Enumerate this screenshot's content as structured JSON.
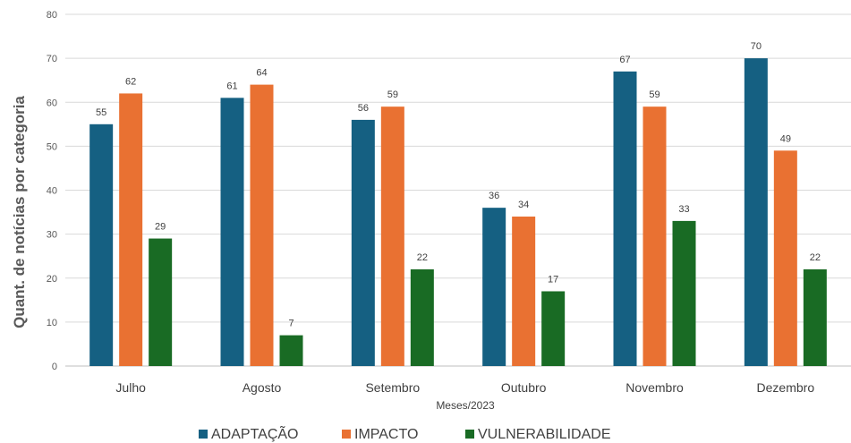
{
  "chart_data": {
    "type": "bar",
    "xlabel": "Meses/2023",
    "ylabel": "Quant. de notícias por categoria",
    "ylim": [
      0,
      80
    ],
    "yticks": [
      0,
      10,
      20,
      30,
      40,
      50,
      60,
      70,
      80
    ],
    "grid": true,
    "legend_position": "bottom",
    "categories": [
      "Julho",
      "Agosto",
      "Setembro",
      "Outubro",
      "Novembro",
      "Dezembro"
    ],
    "series": [
      {
        "name": "ADAPTAÇÃO",
        "color": "#156082",
        "values": [
          55,
          61,
          56,
          36,
          67,
          70
        ]
      },
      {
        "name": "IMPACTO",
        "color": "#E97132",
        "values": [
          62,
          64,
          59,
          34,
          59,
          49
        ]
      },
      {
        "name": "VULNERABILIDADE",
        "color": "#196B24",
        "values": [
          29,
          7,
          22,
          17,
          33,
          22
        ]
      }
    ]
  }
}
